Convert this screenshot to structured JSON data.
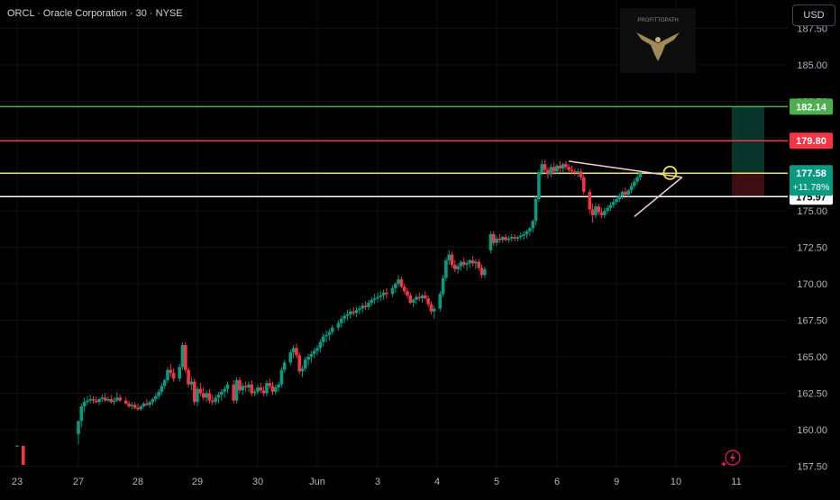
{
  "header": {
    "symbol_line": "ORCL · Oracle Corporation · 30 · NYSE",
    "currency": "USD"
  },
  "watermark": {
    "text": "PROFITTOPATH"
  },
  "chart_data": {
    "type": "candlestick",
    "title": "ORCL · Oracle Corporation · 30 · NYSE",
    "price_axis": {
      "ticks": [
        "187.50",
        "185.00",
        "182.50",
        "180.00",
        "177.50",
        "175.00",
        "172.50",
        "170.00",
        "167.50",
        "165.00",
        "162.50",
        "160.00",
        "157.50"
      ],
      "range": [
        157.5,
        188.0
      ],
      "position": "right"
    },
    "time_axis": {
      "ticks": [
        "23",
        "27",
        "28",
        "29",
        "30",
        "Jun",
        "3",
        "4",
        "5",
        "6",
        "9",
        "10",
        "11"
      ]
    },
    "horizontal_levels": [
      {
        "price": 182.14,
        "label": "182.14",
        "color": "#4caf50"
      },
      {
        "price": 179.8,
        "label": "179.80",
        "color": "#f23645"
      },
      {
        "price": 177.58,
        "label": "177.58",
        "color": "#e6e64c"
      },
      {
        "price": 175.97,
        "label": "175.97",
        "color": "#ffffff"
      }
    ],
    "current_price": {
      "price": 177.58,
      "label": "177.58",
      "change": "+11.78%",
      "color": "#089981"
    },
    "position_tool": {
      "entry": 177.58,
      "target": 182.14,
      "stop": 175.97
    },
    "triangle_pattern": {
      "upper_line": [
        [
          9.2,
          178.4
        ],
        [
          11.1,
          177.3
        ]
      ],
      "lower_line": [
        [
          10.3,
          174.6
        ],
        [
          11.1,
          177.3
        ]
      ],
      "circle_at": [
        10.9,
        177.6
      ]
    },
    "candles": [
      [
        0.0,
        158.9,
        158.95,
        158.85,
        158.9
      ],
      [
        0.1,
        158.9,
        158.9,
        157.6,
        157.6
      ],
      [
        1.0,
        159.7,
        160.6,
        159.0,
        160.6
      ],
      [
        1.05,
        160.6,
        161.8,
        160.2,
        161.6
      ],
      [
        1.1,
        161.6,
        162.2,
        161.2,
        161.9
      ],
      [
        1.15,
        161.9,
        162.3,
        161.7,
        162.0
      ],
      [
        1.2,
        162.0,
        162.4,
        161.8,
        162.1
      ],
      [
        1.25,
        162.1,
        162.3,
        161.8,
        162.0
      ],
      [
        1.3,
        162.0,
        162.3,
        161.8,
        161.9
      ],
      [
        1.35,
        161.9,
        162.2,
        161.7,
        162.1
      ],
      [
        1.4,
        162.1,
        162.4,
        161.9,
        162.2
      ],
      [
        1.45,
        162.2,
        162.5,
        161.9,
        162.0
      ],
      [
        1.5,
        162.0,
        162.3,
        161.9,
        162.1
      ],
      [
        1.55,
        162.1,
        162.4,
        161.8,
        161.9
      ],
      [
        1.6,
        161.9,
        162.2,
        161.7,
        162.0
      ],
      [
        1.65,
        162.0,
        162.6,
        161.9,
        162.2
      ],
      [
        1.7,
        162.2,
        162.4,
        161.9,
        162.0
      ],
      [
        1.8,
        162.0,
        162.2,
        161.7,
        161.8
      ],
      [
        1.85,
        161.8,
        162.0,
        161.5,
        161.6
      ],
      [
        1.9,
        161.6,
        161.9,
        161.4,
        161.7
      ],
      [
        1.95,
        161.7,
        161.9,
        161.4,
        161.5
      ],
      [
        2.0,
        161.5,
        161.8,
        161.3,
        161.4
      ],
      [
        2.05,
        161.4,
        161.7,
        161.3,
        161.6
      ],
      [
        2.1,
        161.6,
        161.9,
        161.5,
        161.8
      ],
      [
        2.15,
        161.8,
        162.1,
        161.6,
        161.7
      ],
      [
        2.2,
        161.7,
        162.0,
        161.5,
        161.9
      ],
      [
        2.25,
        161.9,
        162.2,
        161.7,
        162.1
      ],
      [
        2.3,
        162.1,
        162.5,
        161.9,
        162.3
      ],
      [
        2.35,
        162.3,
        162.8,
        162.1,
        162.6
      ],
      [
        2.4,
        162.6,
        163.2,
        162.4,
        163.0
      ],
      [
        2.45,
        163.0,
        163.5,
        162.8,
        163.4
      ],
      [
        2.5,
        163.4,
        164.3,
        163.2,
        164.1
      ],
      [
        2.55,
        164.1,
        164.5,
        163.6,
        163.9
      ],
      [
        2.6,
        163.9,
        164.2,
        163.3,
        163.5
      ],
      [
        2.7,
        163.5,
        164.5,
        163.3,
        164.3
      ],
      [
        2.75,
        164.3,
        166.0,
        164.1,
        165.8
      ],
      [
        2.8,
        165.8,
        166.0,
        163.9,
        164.1
      ],
      [
        2.85,
        164.1,
        164.3,
        162.9,
        163.1
      ],
      [
        2.9,
        163.1,
        163.6,
        162.7,
        163.3
      ],
      [
        2.95,
        163.3,
        163.5,
        161.7,
        161.9
      ],
      [
        3.0,
        161.9,
        163.0,
        161.6,
        162.8
      ],
      [
        3.05,
        162.8,
        163.2,
        162.3,
        162.5
      ],
      [
        3.1,
        162.5,
        162.9,
        162.0,
        162.2
      ],
      [
        3.15,
        162.2,
        162.7,
        161.9,
        162.5
      ],
      [
        3.2,
        162.5,
        162.8,
        161.8,
        162.0
      ],
      [
        3.25,
        162.0,
        162.4,
        161.7,
        161.9
      ],
      [
        3.3,
        161.9,
        162.4,
        161.7,
        162.2
      ],
      [
        3.35,
        162.2,
        162.6,
        161.8,
        162.4
      ],
      [
        3.4,
        162.4,
        162.8,
        162.0,
        162.6
      ],
      [
        3.45,
        162.6,
        163.0,
        162.2,
        162.8
      ],
      [
        3.5,
        162.8,
        163.3,
        162.5,
        163.1
      ],
      [
        3.6,
        163.1,
        163.4,
        161.8,
        162.0
      ],
      [
        3.65,
        162.0,
        163.6,
        161.8,
        163.4
      ],
      [
        3.7,
        163.4,
        163.6,
        162.5,
        162.7
      ],
      [
        3.75,
        162.7,
        163.2,
        162.4,
        163.0
      ],
      [
        3.8,
        163.0,
        163.3,
        162.6,
        162.9
      ],
      [
        3.85,
        162.9,
        163.3,
        162.6,
        163.1
      ],
      [
        3.9,
        163.1,
        163.4,
        162.3,
        162.5
      ],
      [
        3.95,
        162.5,
        162.8,
        162.3,
        162.6
      ],
      [
        4.0,
        162.6,
        163.1,
        162.4,
        162.9
      ],
      [
        4.05,
        162.9,
        163.2,
        162.5,
        162.7
      ],
      [
        4.1,
        162.7,
        163.0,
        162.3,
        162.5
      ],
      [
        4.15,
        162.5,
        163.4,
        162.3,
        163.2
      ],
      [
        4.2,
        163.2,
        163.5,
        162.8,
        163.0
      ],
      [
        4.25,
        163.0,
        163.3,
        162.4,
        162.6
      ],
      [
        4.3,
        162.6,
        163.1,
        162.4,
        162.9
      ],
      [
        4.35,
        162.9,
        163.3,
        162.6,
        163.1
      ],
      [
        4.4,
        163.1,
        164.3,
        162.9,
        164.1
      ],
      [
        4.45,
        164.1,
        164.8,
        163.9,
        164.6
      ],
      [
        4.55,
        164.6,
        165.5,
        164.4,
        165.3
      ],
      [
        4.6,
        165.3,
        165.8,
        164.9,
        165.6
      ],
      [
        4.65,
        165.6,
        165.9,
        164.9,
        165.1
      ],
      [
        4.7,
        165.1,
        165.3,
        163.8,
        164.0
      ],
      [
        4.75,
        164.0,
        164.4,
        163.6,
        164.2
      ],
      [
        4.8,
        164.2,
        165.0,
        164.0,
        164.8
      ],
      [
        4.85,
        164.8,
        165.2,
        164.4,
        165.0
      ],
      [
        4.9,
        165.0,
        165.4,
        164.6,
        165.2
      ],
      [
        4.95,
        165.2,
        165.6,
        164.9,
        165.4
      ],
      [
        5.0,
        165.4,
        165.8,
        165.1,
        165.6
      ],
      [
        5.05,
        165.6,
        166.2,
        165.3,
        166.0
      ],
      [
        5.1,
        166.0,
        166.6,
        165.7,
        166.4
      ],
      [
        5.15,
        166.4,
        166.8,
        166.0,
        166.5
      ],
      [
        5.2,
        166.5,
        166.9,
        166.1,
        166.7
      ],
      [
        5.25,
        166.7,
        167.2,
        166.5,
        167.0
      ],
      [
        5.35,
        167.0,
        167.5,
        166.8,
        167.3
      ],
      [
        5.4,
        167.3,
        167.8,
        167.0,
        167.6
      ],
      [
        5.45,
        167.6,
        168.0,
        167.3,
        167.8
      ],
      [
        5.5,
        167.8,
        168.2,
        167.5,
        167.9
      ],
      [
        5.55,
        167.9,
        168.3,
        167.6,
        168.1
      ],
      [
        5.6,
        168.1,
        168.4,
        167.8,
        168.0
      ],
      [
        5.65,
        168.0,
        168.4,
        167.7,
        168.2
      ],
      [
        5.7,
        168.2,
        168.5,
        167.9,
        168.3
      ],
      [
        5.75,
        168.3,
        168.7,
        168.0,
        168.5
      ],
      [
        5.8,
        168.5,
        168.8,
        168.2,
        168.4
      ],
      [
        5.85,
        168.4,
        168.9,
        168.2,
        168.7
      ],
      [
        5.9,
        168.7,
        169.1,
        168.5,
        168.9
      ],
      [
        5.95,
        168.9,
        169.3,
        168.6,
        169.0
      ],
      [
        6.0,
        169.0,
        169.4,
        168.7,
        169.1
      ],
      [
        6.05,
        169.1,
        169.5,
        168.8,
        169.2
      ],
      [
        6.1,
        169.2,
        169.6,
        168.9,
        169.4
      ],
      [
        6.15,
        169.4,
        169.7,
        169.0,
        169.3
      ],
      [
        6.25,
        169.3,
        169.9,
        169.1,
        169.7
      ],
      [
        6.3,
        169.7,
        170.1,
        169.4,
        170.0
      ],
      [
        6.35,
        170.0,
        170.6,
        169.8,
        170.3
      ],
      [
        6.4,
        170.3,
        170.5,
        169.7,
        169.8
      ],
      [
        6.45,
        169.8,
        170.0,
        169.3,
        169.5
      ],
      [
        6.5,
        169.5,
        169.7,
        169.0,
        169.2
      ],
      [
        6.55,
        169.2,
        169.4,
        168.6,
        168.7
      ],
      [
        6.6,
        168.7,
        169.0,
        168.4,
        168.9
      ],
      [
        6.65,
        168.9,
        169.3,
        168.6,
        169.1
      ],
      [
        6.7,
        169.1,
        169.4,
        168.8,
        169.0
      ],
      [
        6.75,
        169.0,
        169.3,
        168.7,
        169.2
      ],
      [
        6.8,
        169.2,
        169.5,
        168.9,
        169.0
      ],
      [
        6.85,
        169.0,
        169.2,
        168.4,
        168.6
      ],
      [
        6.9,
        168.6,
        168.8,
        167.9,
        168.1
      ],
      [
        6.95,
        168.1,
        168.5,
        167.6,
        168.3
      ],
      [
        7.05,
        168.3,
        169.5,
        168.1,
        169.3
      ],
      [
        7.1,
        169.3,
        170.6,
        169.1,
        170.4
      ],
      [
        7.15,
        170.4,
        171.8,
        170.2,
        171.6
      ],
      [
        7.2,
        171.6,
        172.3,
        171.3,
        172.0
      ],
      [
        7.25,
        172.0,
        172.2,
        171.1,
        171.3
      ],
      [
        7.3,
        171.3,
        171.6,
        170.8,
        171.0
      ],
      [
        7.35,
        171.0,
        171.4,
        170.7,
        171.2
      ],
      [
        7.4,
        171.2,
        171.6,
        170.9,
        171.5
      ],
      [
        7.45,
        171.5,
        171.8,
        171.1,
        171.3
      ],
      [
        7.5,
        171.3,
        171.6,
        170.9,
        171.4
      ],
      [
        7.55,
        171.4,
        171.7,
        171.1,
        171.6
      ],
      [
        7.6,
        171.6,
        171.9,
        171.2,
        171.4
      ],
      [
        7.65,
        171.4,
        171.7,
        171.0,
        171.5
      ],
      [
        7.7,
        171.5,
        171.7,
        170.9,
        171.1
      ],
      [
        7.75,
        171.1,
        171.3,
        170.4,
        170.6
      ],
      [
        7.8,
        170.6,
        171.2,
        170.4,
        171.0
      ],
      [
        7.9,
        172.3,
        173.6,
        172.1,
        173.4
      ],
      [
        7.95,
        173.4,
        173.6,
        172.6,
        172.8
      ],
      [
        8.0,
        172.8,
        173.3,
        172.6,
        173.1
      ],
      [
        8.05,
        173.1,
        173.4,
        172.8,
        173.0
      ],
      [
        8.1,
        173.0,
        173.3,
        172.8,
        173.2
      ],
      [
        8.15,
        173.2,
        173.4,
        172.9,
        173.0
      ],
      [
        8.2,
        173.0,
        173.3,
        172.8,
        173.1
      ],
      [
        8.25,
        173.1,
        173.4,
        172.9,
        173.2
      ],
      [
        8.3,
        173.2,
        173.4,
        172.9,
        173.1
      ],
      [
        8.35,
        173.1,
        173.3,
        172.9,
        173.2
      ],
      [
        8.4,
        173.2,
        173.5,
        173.0,
        173.3
      ],
      [
        8.45,
        173.3,
        173.6,
        173.0,
        173.4
      ],
      [
        8.5,
        173.4,
        173.7,
        173.1,
        173.6
      ],
      [
        8.55,
        173.6,
        173.9,
        173.3,
        173.8
      ],
      [
        8.6,
        173.8,
        174.4,
        173.5,
        174.3
      ],
      [
        8.65,
        174.3,
        176.0,
        174.0,
        175.8
      ],
      [
        8.7,
        175.8,
        177.8,
        175.6,
        177.6
      ],
      [
        8.75,
        177.6,
        178.5,
        177.4,
        178.2
      ],
      [
        8.8,
        178.2,
        178.5,
        177.6,
        177.8
      ],
      [
        8.85,
        177.8,
        178.0,
        177.2,
        177.5
      ],
      [
        8.9,
        177.5,
        178.2,
        177.3,
        178.0
      ],
      [
        8.95,
        178.0,
        178.3,
        177.5,
        177.7
      ],
      [
        9.0,
        177.7,
        178.2,
        177.5,
        178.1
      ],
      [
        9.05,
        178.1,
        178.4,
        177.6,
        177.9
      ],
      [
        9.1,
        177.9,
        178.3,
        177.6,
        178.2
      ],
      [
        9.15,
        178.2,
        178.4,
        177.8,
        178.0
      ],
      [
        9.2,
        178.0,
        178.2,
        177.6,
        177.8
      ],
      [
        9.25,
        177.8,
        178.1,
        177.5,
        177.7
      ],
      [
        9.3,
        177.7,
        177.9,
        177.4,
        177.6
      ],
      [
        9.35,
        177.6,
        177.9,
        177.3,
        177.7
      ],
      [
        9.4,
        177.7,
        177.9,
        177.1,
        177.3
      ],
      [
        9.45,
        177.3,
        177.5,
        176.1,
        176.3
      ],
      [
        9.55,
        176.3,
        176.5,
        174.8,
        175.1
      ],
      [
        9.6,
        175.1,
        175.5,
        174.2,
        174.7
      ],
      [
        9.65,
        174.7,
        175.5,
        174.5,
        175.3
      ],
      [
        9.7,
        175.3,
        175.5,
        174.7,
        174.9
      ],
      [
        9.75,
        174.9,
        175.2,
        174.5,
        174.7
      ],
      [
        9.8,
        174.7,
        175.2,
        174.5,
        175.0
      ],
      [
        9.85,
        175.0,
        175.4,
        174.8,
        175.2
      ],
      [
        9.9,
        175.2,
        175.6,
        175.0,
        175.4
      ],
      [
        9.95,
        175.4,
        175.8,
        175.2,
        175.6
      ],
      [
        10.0,
        175.6,
        176.0,
        175.4,
        175.8
      ],
      [
        10.05,
        175.8,
        176.2,
        175.6,
        176.0
      ],
      [
        10.1,
        176.0,
        176.4,
        175.8,
        176.3
      ],
      [
        10.15,
        176.3,
        176.6,
        176.0,
        176.1
      ],
      [
        10.2,
        176.1,
        176.5,
        175.9,
        176.4
      ],
      [
        10.25,
        176.4,
        176.9,
        176.2,
        176.7
      ],
      [
        10.3,
        176.7,
        177.2,
        176.5,
        177.0
      ],
      [
        10.35,
        177.0,
        177.5,
        176.8,
        177.3
      ],
      [
        10.4,
        177.3,
        177.7,
        177.1,
        177.58
      ]
    ]
  }
}
